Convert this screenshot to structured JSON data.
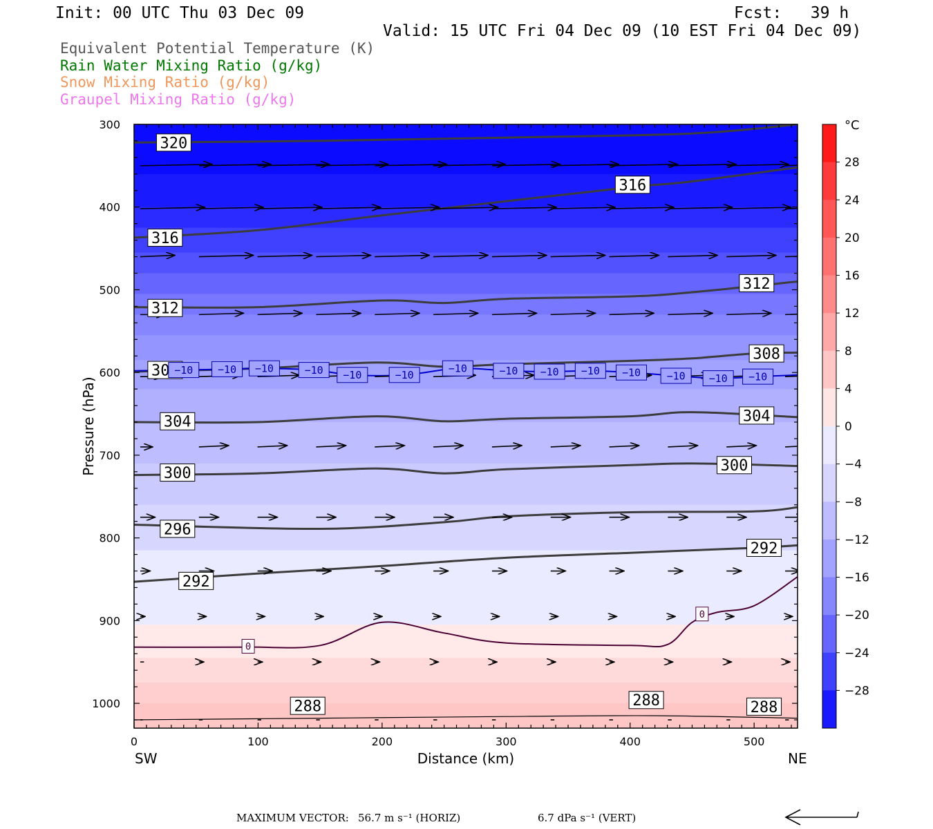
{
  "header": {
    "init": "Init: 00 UTC Thu 03 Dec 09",
    "fcst": "Fcst:   39 h",
    "valid": "Valid: 15 UTC Fri 04 Dec 09 (10 EST Fri 04 Dec 09)"
  },
  "fields": [
    {
      "label": "Equivalent Potential Temperature (K)",
      "color": "#555555"
    },
    {
      "label": "Rain Water Mixing Ratio (g/kg)",
      "color": "#007700"
    },
    {
      "label": "Snow Mixing Ratio (g/kg)",
      "color": "#f0965a"
    },
    {
      "label": "Graupel Mixing Ratio (g/kg)",
      "color": "#ee77ee"
    }
  ],
  "footer": {
    "max_vector_label": "MAXIMUM VECTOR:",
    "horiz": "56.7 m s⁻¹ (HORIZ)",
    "vert": "6.7 dPa s⁻¹ (VERT)"
  },
  "chart_data": {
    "type": "heatmap",
    "title": "",
    "xlabel": "Distance (km)",
    "ylabel": "Pressure (hPa)",
    "x_range": [
      0,
      535
    ],
    "y_range": [
      300,
      1030
    ],
    "y_log": false,
    "x_ticks": [
      0,
      100,
      200,
      300,
      400,
      500
    ],
    "y_ticks": [
      300,
      400,
      500,
      600,
      700,
      800,
      900,
      1000
    ],
    "x_end_labels": {
      "left": "SW",
      "right": "NE"
    },
    "colorbar": {
      "unit": "°C",
      "ticks": [
        28,
        24,
        20,
        16,
        12,
        8,
        4,
        0,
        -4,
        -8,
        -12,
        -16,
        -20,
        -24,
        -28
      ],
      "levels": [
        {
          "min": 28,
          "max": 32,
          "color": "#ff1a1a"
        },
        {
          "min": 24,
          "max": 28,
          "color": "#ff3a3a"
        },
        {
          "min": 20,
          "max": 24,
          "color": "#ff5656"
        },
        {
          "min": 16,
          "max": 20,
          "color": "#ff7070"
        },
        {
          "min": 12,
          "max": 16,
          "color": "#ff8a8a"
        },
        {
          "min": 8,
          "max": 12,
          "color": "#ffa8a8"
        },
        {
          "min": 4,
          "max": 8,
          "color": "#ffc6c6"
        },
        {
          "min": 0,
          "max": 4,
          "color": "#ffe6e6"
        },
        {
          "min": -4,
          "max": 0,
          "color": "#ebebff"
        },
        {
          "min": -8,
          "max": -4,
          "color": "#d6d6ff"
        },
        {
          "min": -12,
          "max": -8,
          "color": "#bdbdff"
        },
        {
          "min": -16,
          "max": -12,
          "color": "#a2a2ff"
        },
        {
          "min": -20,
          "max": -16,
          "color": "#8686ff"
        },
        {
          "min": -24,
          "max": -20,
          "color": "#6666ff"
        },
        {
          "min": -28,
          "max": -24,
          "color": "#4040ff"
        },
        {
          "min": -32,
          "max": -28,
          "color": "#1a1aff"
        }
      ]
    },
    "temperature_bands": [
      {
        "color": "#0b0bff",
        "p_top": 300,
        "p_bottom": 360
      },
      {
        "color": "#1a1aff",
        "p_top": 360,
        "p_bottom": 400
      },
      {
        "color": "#2b2bff",
        "p_top": 400,
        "p_bottom": 425
      },
      {
        "color": "#4040ff",
        "p_top": 425,
        "p_bottom": 455
      },
      {
        "color": "#5252ff",
        "p_top": 455,
        "p_bottom": 480
      },
      {
        "color": "#6666ff",
        "p_top": 480,
        "p_bottom": 505
      },
      {
        "color": "#7777ff",
        "p_top": 505,
        "p_bottom": 530
      },
      {
        "color": "#8686ff",
        "p_top": 530,
        "p_bottom": 555
      },
      {
        "color": "#9595ff",
        "p_top": 555,
        "p_bottom": 585
      },
      {
        "color": "#a2a2ff",
        "p_top": 585,
        "p_bottom": 620
      },
      {
        "color": "#b0b0ff",
        "p_top": 620,
        "p_bottom": 660
      },
      {
        "color": "#bdbdff",
        "p_top": 660,
        "p_bottom": 710
      },
      {
        "color": "#cacaff",
        "p_top": 710,
        "p_bottom": 760
      },
      {
        "color": "#d6d6ff",
        "p_top": 760,
        "p_bottom": 815
      },
      {
        "color": "#ebebff",
        "p_top": 815,
        "p_bottom": 905
      },
      {
        "color": "#ffe9e9",
        "p_top": 905,
        "p_bottom": 945
      },
      {
        "color": "#ffdada",
        "p_top": 945,
        "p_bottom": 975
      },
      {
        "color": "#ffcece",
        "p_top": 975,
        "p_bottom": 1000
      },
      {
        "color": "#ffc6c6",
        "p_top": 1000,
        "p_bottom": 1030
      }
    ],
    "theta_e_contours": [
      {
        "value": 320,
        "label": "320",
        "points": [
          [
            0,
            322
          ],
          [
            150,
            320
          ],
          [
            300,
            316
          ],
          [
            450,
            311
          ],
          [
            535,
            300
          ]
        ],
        "labels_at": [
          [
            32,
            322
          ]
        ]
      },
      {
        "value": 316,
        "label": "316",
        "points": [
          [
            0,
            437
          ],
          [
            100,
            428
          ],
          [
            200,
            410
          ],
          [
            300,
            393
          ],
          [
            400,
            376
          ],
          [
            450,
            369
          ],
          [
            535,
            352
          ]
        ],
        "labels_at": [
          [
            25,
            437
          ],
          [
            402,
            373
          ]
        ]
      },
      {
        "value": 312,
        "label": "312",
        "points": [
          [
            0,
            521
          ],
          [
            100,
            521
          ],
          [
            200,
            513
          ],
          [
            250,
            516
          ],
          [
            300,
            511
          ],
          [
            400,
            508
          ],
          [
            450,
            503
          ],
          [
            535,
            490
          ]
        ],
        "labels_at": [
          [
            25,
            522
          ],
          [
            502,
            492
          ]
        ]
      },
      {
        "value": 308,
        "label": "308",
        "points": [
          [
            0,
            599
          ],
          [
            100,
            595
          ],
          [
            195,
            588
          ],
          [
            250,
            593
          ],
          [
            300,
            590
          ],
          [
            400,
            586
          ],
          [
            450,
            583
          ],
          [
            500,
            577
          ],
          [
            535,
            576
          ]
        ],
        "labels_at": [
          [
            25,
            597
          ],
          [
            510,
            577
          ]
        ]
      },
      {
        "value": 304,
        "label": "304",
        "points": [
          [
            0,
            660
          ],
          [
            100,
            660
          ],
          [
            195,
            653
          ],
          [
            250,
            659
          ],
          [
            300,
            656
          ],
          [
            400,
            653
          ],
          [
            450,
            648
          ],
          [
            535,
            654
          ]
        ],
        "labels_at": [
          [
            35,
            659
          ],
          [
            502,
            652
          ]
        ]
      },
      {
        "value": 300,
        "label": "300",
        "points": [
          [
            0,
            724
          ],
          [
            100,
            722
          ],
          [
            195,
            716
          ],
          [
            250,
            722
          ],
          [
            300,
            717
          ],
          [
            400,
            712
          ],
          [
            450,
            710
          ],
          [
            535,
            713
          ]
        ],
        "labels_at": [
          [
            35,
            721
          ],
          [
            484,
            712
          ]
        ]
      },
      {
        "value": 296,
        "label": "296",
        "points": [
          [
            0,
            784
          ],
          [
            150,
            789
          ],
          [
            250,
            781
          ],
          [
            300,
            774
          ],
          [
            400,
            769
          ],
          [
            500,
            768
          ],
          [
            535,
            763
          ]
        ],
        "labels_at": [
          [
            35,
            789
          ]
        ]
      },
      {
        "value": 292,
        "label": "292",
        "points": [
          [
            0,
            853
          ],
          [
            100,
            843
          ],
          [
            200,
            834
          ],
          [
            300,
            824
          ],
          [
            400,
            818
          ],
          [
            500,
            812
          ],
          [
            535,
            809
          ]
        ],
        "labels_at": [
          [
            50,
            852
          ],
          [
            508,
            812
          ]
        ]
      },
      {
        "value": 288,
        "label": "288",
        "points": [
          [
            0,
            1020
          ],
          [
            150,
            1018
          ],
          [
            300,
            1016
          ],
          [
            420,
            1015
          ],
          [
            535,
            1018
          ]
        ],
        "labels_at": [
          [
            140,
            1003
          ],
          [
            413,
            996
          ],
          [
            508,
            1004
          ]
        ]
      }
    ],
    "freezing_line": {
      "value": 0,
      "label": "0",
      "points": [
        [
          0,
          932
        ],
        [
          90,
          932
        ],
        [
          150,
          930
        ],
        [
          200,
          902
        ],
        [
          250,
          915
        ],
        [
          300,
          927
        ],
        [
          400,
          930
        ],
        [
          430,
          929
        ],
        [
          450,
          902
        ],
        [
          470,
          890
        ],
        [
          500,
          882
        ],
        [
          535,
          847
        ]
      ],
      "labels_at": [
        [
          92,
          931
        ],
        [
          458,
          892
        ]
      ]
    },
    "minus10_isotherm": {
      "value": -10,
      "label": "−10",
      "labels_at": [
        [
          40,
          597
        ],
        [
          75,
          596
        ],
        [
          105,
          595
        ],
        [
          145,
          597
        ],
        [
          176,
          603
        ],
        [
          218,
          603
        ],
        [
          261,
          595
        ],
        [
          302,
          598
        ],
        [
          335,
          599
        ],
        [
          368,
          598
        ],
        [
          401,
          600
        ],
        [
          437,
          604
        ],
        [
          471,
          607
        ],
        [
          503,
          605
        ]
      ]
    },
    "wind_vector_rows": [
      {
        "pressure": 350,
        "lengths_km": [
          58,
          58,
          58,
          58,
          58,
          58,
          55,
          55,
          55,
          55,
          50,
          30
        ]
      },
      {
        "pressure": 402,
        "lengths_km": [
          52,
          52,
          52,
          52,
          52,
          52,
          52,
          52,
          52,
          52,
          52,
          40
        ]
      },
      {
        "pressure": 460,
        "lengths_km": [
          28,
          44,
          44,
          44,
          44,
          44,
          44,
          44,
          40,
          40,
          40,
          40
        ]
      },
      {
        "pressure": 530,
        "lengths_km": [
          20,
          36,
          36,
          36,
          36,
          36,
          36,
          36,
          36,
          36,
          36,
          36
        ]
      },
      {
        "pressure": 605,
        "lengths_km": [
          18,
          34,
          34,
          34,
          34,
          34,
          34,
          34,
          34,
          34,
          34,
          30
        ]
      },
      {
        "pressure": 690,
        "lengths_km": [
          10,
          24,
          24,
          24,
          24,
          24,
          24,
          24,
          24,
          24,
          24,
          22
        ]
      },
      {
        "pressure": 775,
        "lengths_km": [
          12,
          16,
          16,
          16,
          16,
          16,
          16,
          16,
          16,
          16,
          16,
          16
        ]
      },
      {
        "pressure": 840,
        "lengths_km": [
          8,
          12,
          12,
          12,
          12,
          12,
          12,
          12,
          12,
          12,
          12,
          12
        ]
      },
      {
        "pressure": 895,
        "lengths_km": [
          4,
          6,
          6,
          6,
          6,
          6,
          6,
          6,
          6,
          6,
          6,
          6
        ]
      },
      {
        "pressure": 950,
        "lengths_km": [
          3,
          4,
          4,
          4,
          4,
          4,
          4,
          4,
          4,
          4,
          4,
          4
        ]
      },
      {
        "pressure": 1020,
        "lengths_km": [
          2,
          3,
          3,
          3,
          3,
          3,
          3,
          3,
          3,
          3,
          3,
          3
        ]
      }
    ],
    "grid": false,
    "legend": "right colorbar"
  }
}
